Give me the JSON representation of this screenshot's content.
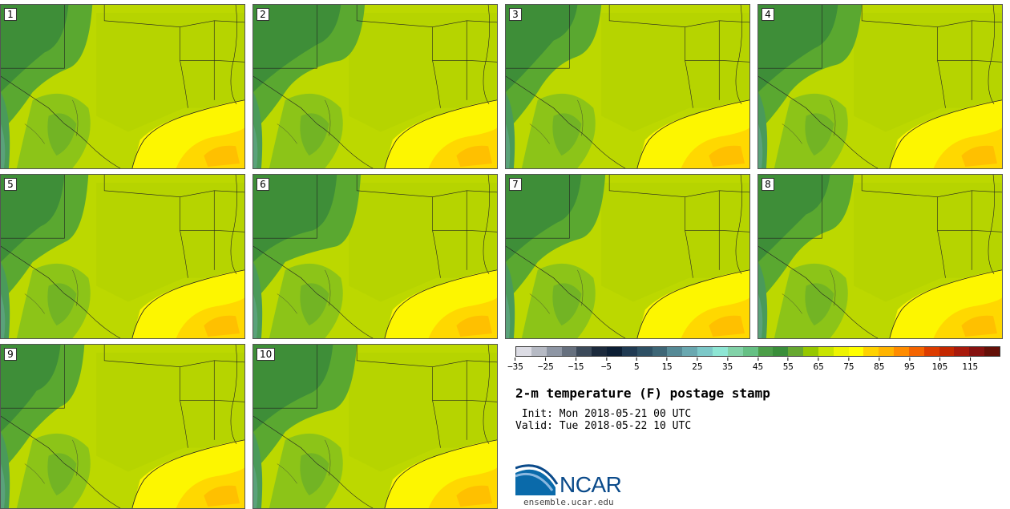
{
  "panels": [
    {
      "number": "1"
    },
    {
      "number": "2"
    },
    {
      "number": "3"
    },
    {
      "number": "4"
    },
    {
      "number": "5"
    },
    {
      "number": "6"
    },
    {
      "number": "7"
    },
    {
      "number": "8"
    },
    {
      "number": "9"
    },
    {
      "number": "10"
    }
  ],
  "legend": {
    "colors": [
      "#dcdce4",
      "#b6bac4",
      "#8e96a4",
      "#66707e",
      "#3c4a5a",
      "#1c2a3c",
      "#0c1e34",
      "#203a52",
      "#2e5064",
      "#3e6676",
      "#568a96",
      "#6aa8b0",
      "#7cc8c8",
      "#8ee6d4",
      "#82d2a8",
      "#66c084",
      "#4c9e48",
      "#3a8e3a",
      "#66a830",
      "#96c800",
      "#c8e400",
      "#eef400",
      "#ffff00",
      "#ffd200",
      "#ffb400",
      "#ff8c00",
      "#f46400",
      "#dc3c00",
      "#c42800",
      "#a81a0c",
      "#861210",
      "#641008"
    ],
    "ticks": [
      "−35",
      "−25",
      "−15",
      "−5",
      "5",
      "15",
      "25",
      "35",
      "45",
      "55",
      "65",
      "75",
      "85",
      "95",
      "105",
      "115"
    ]
  },
  "title": "2-m temperature (F) postage stamp",
  "init_line": " Init: Mon 2018-05-21 00 UTC",
  "valid_line": "Valid: Tue 2018-05-22 10 UTC",
  "logo_text": "NCAR",
  "website": "ensemble.ucar.edu"
}
